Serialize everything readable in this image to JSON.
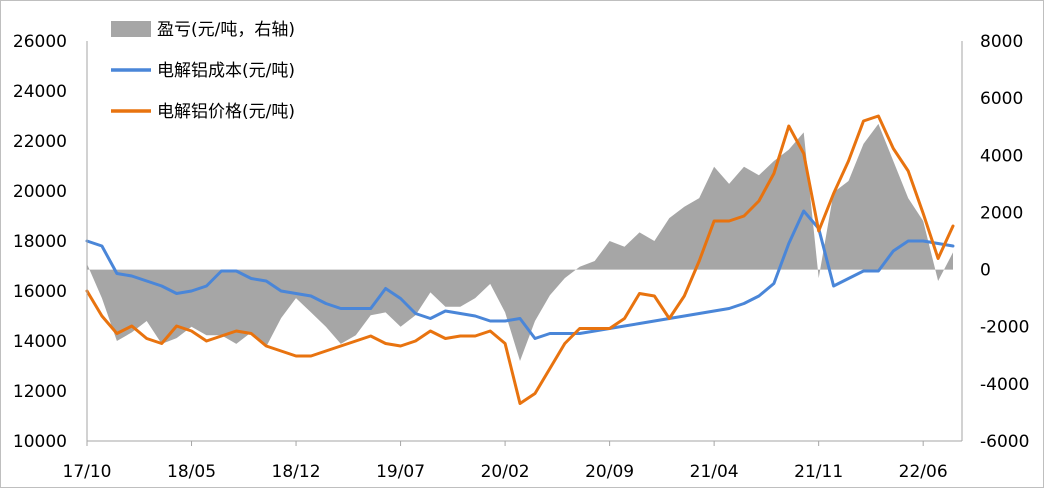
{
  "chart_data": {
    "type": "area+line",
    "x_ticks": [
      "17/10",
      "18/05",
      "18/12",
      "19/07",
      "20/02",
      "20/09",
      "21/04",
      "21/11",
      "22/06"
    ],
    "y_left": {
      "ticks": [
        "10000",
        "12000",
        "14000",
        "16000",
        "18000",
        "20000",
        "22000",
        "24000",
        "26000"
      ],
      "lim": [
        10000,
        26000
      ]
    },
    "y_right": {
      "ticks": [
        "-6000",
        "-4000",
        "-2000",
        "0",
        "2000",
        "4000",
        "6000",
        "8000"
      ],
      "lim": [
        -6000,
        8000
      ]
    },
    "grid": false,
    "legend_position": "top-left",
    "colors": {
      "profit": "#a6a6a6",
      "cost": "#4a86d8",
      "price": "#e8730f"
    },
    "series": [
      {
        "name": "盈亏(元/吨，右轴)",
        "kind": "area",
        "axis": "right",
        "points": [
          [
            "17/10",
            200
          ],
          [
            "17/11",
            -1000
          ],
          [
            "17/12",
            -2500
          ],
          [
            "18/01",
            -2200
          ],
          [
            "18/02",
            -1800
          ],
          [
            "18/03",
            -2600
          ],
          [
            "18/04",
            -2400
          ],
          [
            "18/05",
            -2000
          ],
          [
            "18/06",
            -2300
          ],
          [
            "18/07",
            -2300
          ],
          [
            "18/08",
            -2600
          ],
          [
            "18/09",
            -2200
          ],
          [
            "18/10",
            -2700
          ],
          [
            "18/11",
            -1700
          ],
          [
            "18/12",
            -1000
          ],
          [
            "19/01",
            -1500
          ],
          [
            "19/02",
            -2000
          ],
          [
            "19/03",
            -2600
          ],
          [
            "19/04",
            -2300
          ],
          [
            "19/05",
            -1600
          ],
          [
            "19/06",
            -1500
          ],
          [
            "19/07",
            -2000
          ],
          [
            "19/08",
            -1600
          ],
          [
            "19/09",
            -800
          ],
          [
            "19/10",
            -1300
          ],
          [
            "19/11",
            -1300
          ],
          [
            "19/12",
            -1000
          ],
          [
            "20/01",
            -500
          ],
          [
            "20/02",
            -1500
          ],
          [
            "20/03",
            -3200
          ],
          [
            "20/04",
            -1800
          ],
          [
            "20/05",
            -900
          ],
          [
            "20/06",
            -300
          ],
          [
            "20/07",
            100
          ],
          [
            "20/08",
            300
          ],
          [
            "20/09",
            1000
          ],
          [
            "20/10",
            800
          ],
          [
            "20/11",
            1300
          ],
          [
            "20/12",
            1000
          ],
          [
            "21/01",
            1800
          ],
          [
            "21/02",
            2200
          ],
          [
            "21/03",
            2500
          ],
          [
            "21/04",
            3600
          ],
          [
            "21/05",
            3000
          ],
          [
            "21/06",
            3600
          ],
          [
            "21/07",
            3300
          ],
          [
            "21/08",
            3800
          ],
          [
            "21/09",
            4200
          ],
          [
            "21/10",
            4800
          ],
          [
            "21/11",
            -300
          ],
          [
            "21/12",
            2700
          ],
          [
            "22/01",
            3100
          ],
          [
            "22/02",
            4400
          ],
          [
            "22/03",
            5100
          ],
          [
            "22/04",
            3800
          ],
          [
            "22/05",
            2500
          ],
          [
            "22/06",
            1700
          ],
          [
            "22/07",
            -400
          ],
          [
            "22/08",
            600
          ]
        ]
      },
      {
        "name": "电解铝成本(元/吨)",
        "kind": "line",
        "axis": "left",
        "points": [
          [
            "17/10",
            18000
          ],
          [
            "17/11",
            17800
          ],
          [
            "17/12",
            16700
          ],
          [
            "18/01",
            16600
          ],
          [
            "18/02",
            16400
          ],
          [
            "18/03",
            16200
          ],
          [
            "18/04",
            15900
          ],
          [
            "18/05",
            16000
          ],
          [
            "18/06",
            16200
          ],
          [
            "18/07",
            16800
          ],
          [
            "18/08",
            16800
          ],
          [
            "18/09",
            16500
          ],
          [
            "18/10",
            16400
          ],
          [
            "18/11",
            16000
          ],
          [
            "18/12",
            15900
          ],
          [
            "19/01",
            15800
          ],
          [
            "19/02",
            15500
          ],
          [
            "19/03",
            15300
          ],
          [
            "19/04",
            15300
          ],
          [
            "19/05",
            15300
          ],
          [
            "19/06",
            16100
          ],
          [
            "19/07",
            15700
          ],
          [
            "19/08",
            15100
          ],
          [
            "19/09",
            14900
          ],
          [
            "19/10",
            15200
          ],
          [
            "19/11",
            15100
          ],
          [
            "19/12",
            15000
          ],
          [
            "20/01",
            14800
          ],
          [
            "20/02",
            14800
          ],
          [
            "20/03",
            14900
          ],
          [
            "20/04",
            14100
          ],
          [
            "20/05",
            14300
          ],
          [
            "20/06",
            14300
          ],
          [
            "20/07",
            14300
          ],
          [
            "20/08",
            14400
          ],
          [
            "20/09",
            14500
          ],
          [
            "20/10",
            14600
          ],
          [
            "20/11",
            14700
          ],
          [
            "20/12",
            14800
          ],
          [
            "21/01",
            14900
          ],
          [
            "21/02",
            15000
          ],
          [
            "21/03",
            15100
          ],
          [
            "21/04",
            15200
          ],
          [
            "21/05",
            15300
          ],
          [
            "21/06",
            15500
          ],
          [
            "21/07",
            15800
          ],
          [
            "21/08",
            16300
          ],
          [
            "21/09",
            17900
          ],
          [
            "21/10",
            19200
          ],
          [
            "21/11",
            18500
          ],
          [
            "21/12",
            16200
          ],
          [
            "22/01",
            16500
          ],
          [
            "22/02",
            16800
          ],
          [
            "22/03",
            16800
          ],
          [
            "22/04",
            17600
          ],
          [
            "22/05",
            18000
          ],
          [
            "22/06",
            18000
          ],
          [
            "22/07",
            17900
          ],
          [
            "22/08",
            17800
          ]
        ]
      },
      {
        "name": "电解铝价格(元/吨)",
        "kind": "line",
        "axis": "left",
        "points": [
          [
            "17/10",
            16000
          ],
          [
            "17/11",
            15000
          ],
          [
            "17/12",
            14300
          ],
          [
            "18/01",
            14600
          ],
          [
            "18/02",
            14100
          ],
          [
            "18/03",
            13900
          ],
          [
            "18/04",
            14600
          ],
          [
            "18/05",
            14400
          ],
          [
            "18/06",
            14000
          ],
          [
            "18/07",
            14200
          ],
          [
            "18/08",
            14400
          ],
          [
            "18/09",
            14300
          ],
          [
            "18/10",
            13800
          ],
          [
            "18/11",
            13600
          ],
          [
            "18/12",
            13400
          ],
          [
            "19/01",
            13400
          ],
          [
            "19/02",
            13600
          ],
          [
            "19/03",
            13800
          ],
          [
            "19/04",
            14000
          ],
          [
            "19/05",
            14200
          ],
          [
            "19/06",
            13900
          ],
          [
            "19/07",
            13800
          ],
          [
            "19/08",
            14000
          ],
          [
            "19/09",
            14400
          ],
          [
            "19/10",
            14100
          ],
          [
            "19/11",
            14200
          ],
          [
            "19/12",
            14200
          ],
          [
            "20/01",
            14400
          ],
          [
            "20/02",
            13900
          ],
          [
            "20/03",
            11500
          ],
          [
            "20/04",
            11900
          ],
          [
            "20/05",
            12900
          ],
          [
            "20/06",
            13900
          ],
          [
            "20/07",
            14500
          ],
          [
            "20/08",
            14500
          ],
          [
            "20/09",
            14500
          ],
          [
            "20/10",
            14900
          ],
          [
            "20/11",
            15900
          ],
          [
            "20/12",
            15800
          ],
          [
            "21/01",
            14900
          ],
          [
            "21/02",
            15800
          ],
          [
            "21/03",
            17200
          ],
          [
            "21/04",
            18800
          ],
          [
            "21/05",
            18800
          ],
          [
            "21/06",
            19000
          ],
          [
            "21/07",
            19600
          ],
          [
            "21/08",
            20700
          ],
          [
            "21/09",
            22600
          ],
          [
            "21/10",
            21500
          ],
          [
            "21/11",
            18400
          ],
          [
            "21/12",
            19900
          ],
          [
            "22/01",
            21200
          ],
          [
            "22/02",
            22800
          ],
          [
            "22/03",
            23000
          ],
          [
            "22/04",
            21700
          ],
          [
            "22/05",
            20800
          ],
          [
            "22/06",
            19100
          ],
          [
            "22/07",
            17300
          ],
          [
            "22/08",
            18600
          ]
        ]
      }
    ]
  }
}
